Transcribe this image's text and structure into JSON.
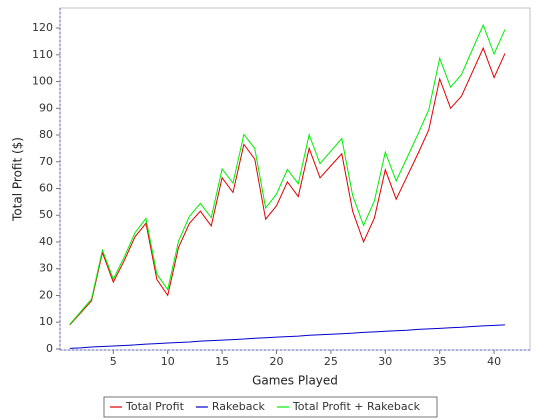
{
  "chart_data": {
    "type": "line",
    "x_label": "Games Played",
    "y_label": "Total Profit ($)",
    "x": [
      1,
      2,
      3,
      4,
      5,
      6,
      7,
      8,
      9,
      10,
      11,
      12,
      13,
      14,
      15,
      16,
      17,
      18,
      19,
      20,
      21,
      22,
      23,
      24,
      25,
      26,
      27,
      28,
      29,
      30,
      31,
      32,
      33,
      34,
      35,
      36,
      37,
      38,
      39,
      40,
      41
    ],
    "series": [
      {
        "name": "Total Profit",
        "color": "#e00000",
        "values": [
          9,
          13.5,
          18,
          36,
          25,
          33,
          42,
          47,
          26,
          20,
          38,
          47,
          51.5,
          46,
          64,
          58.5,
          76.5,
          71,
          48.5,
          53.5,
          62.5,
          57,
          75,
          64,
          68.5,
          73,
          51.5,
          40,
          49,
          67,
          56,
          64.5,
          73,
          82,
          101,
          90,
          94.5,
          103.5,
          112.5,
          101.5,
          110.5
        ]
      },
      {
        "name": "Rakeback",
        "color": "#0000cc",
        "values": [
          0.2,
          0.4,
          0.7,
          0.9,
          1.1,
          1.3,
          1.5,
          1.8,
          2.0,
          2.2,
          2.4,
          2.6,
          2.9,
          3.1,
          3.3,
          3.5,
          3.7,
          4.0,
          4.2,
          4.4,
          4.6,
          4.8,
          5.1,
          5.3,
          5.5,
          5.7,
          5.9,
          6.2,
          6.4,
          6.6,
          6.8,
          7.0,
          7.3,
          7.5,
          7.7,
          7.9,
          8.1,
          8.4,
          8.6,
          8.8,
          9.0
        ]
      },
      {
        "name": "Total Profit + Rakeback",
        "color": "#00ee00",
        "values": [
          9.2,
          13.9,
          18.7,
          36.9,
          26.1,
          34.3,
          43.5,
          48.8,
          28,
          22.2,
          40.4,
          49.6,
          54.4,
          49.1,
          67.3,
          62,
          80.2,
          75,
          52.7,
          57.9,
          67.1,
          61.8,
          80.1,
          69.3,
          74,
          78.7,
          57.4,
          46.2,
          55.4,
          73.6,
          62.8,
          71.5,
          80.3,
          89.5,
          108.7,
          97.9,
          102.6,
          111.9,
          121.1,
          110.3,
          119.5
        ]
      }
    ],
    "xlim": [
      0.1,
      43.3
    ],
    "xticks": [
      5,
      10,
      15,
      20,
      25,
      30,
      35,
      40
    ],
    "ylim": [
      -0.4,
      127.5
    ],
    "yticks": [
      0,
      10,
      20,
      30,
      40,
      50,
      60,
      70,
      80,
      90,
      100,
      110,
      120
    ],
    "grid": false,
    "legend": "bottom"
  }
}
